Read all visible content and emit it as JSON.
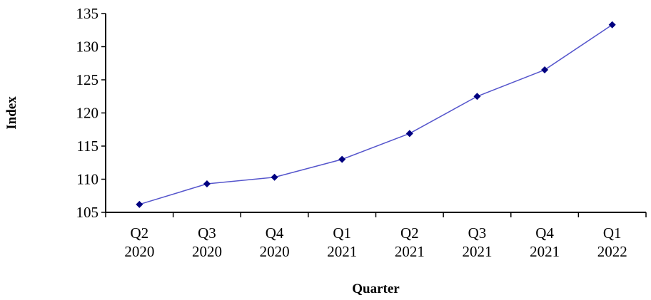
{
  "chart_data": {
    "type": "line",
    "title": "",
    "xlabel": "Quarter",
    "ylabel": "Index",
    "categories": [
      [
        "Q2",
        "2020"
      ],
      [
        "Q3",
        "2020"
      ],
      [
        "Q4",
        "2020"
      ],
      [
        "Q1",
        "2021"
      ],
      [
        "Q2",
        "2021"
      ],
      [
        "Q3",
        "2021"
      ],
      [
        "Q4",
        "2021"
      ],
      [
        "Q1",
        "2022"
      ]
    ],
    "series": [
      {
        "values": [
          106.2,
          109.3,
          110.3,
          113.0,
          116.9,
          122.5,
          126.5,
          133.3
        ],
        "color": "#000080",
        "marker": "diamond",
        "line_color": "#5555cc"
      }
    ],
    "ylim": [
      105,
      135
    ],
    "yticks": [
      105,
      110,
      115,
      120,
      125,
      130,
      135
    ],
    "grid": false,
    "legend": "none"
  }
}
